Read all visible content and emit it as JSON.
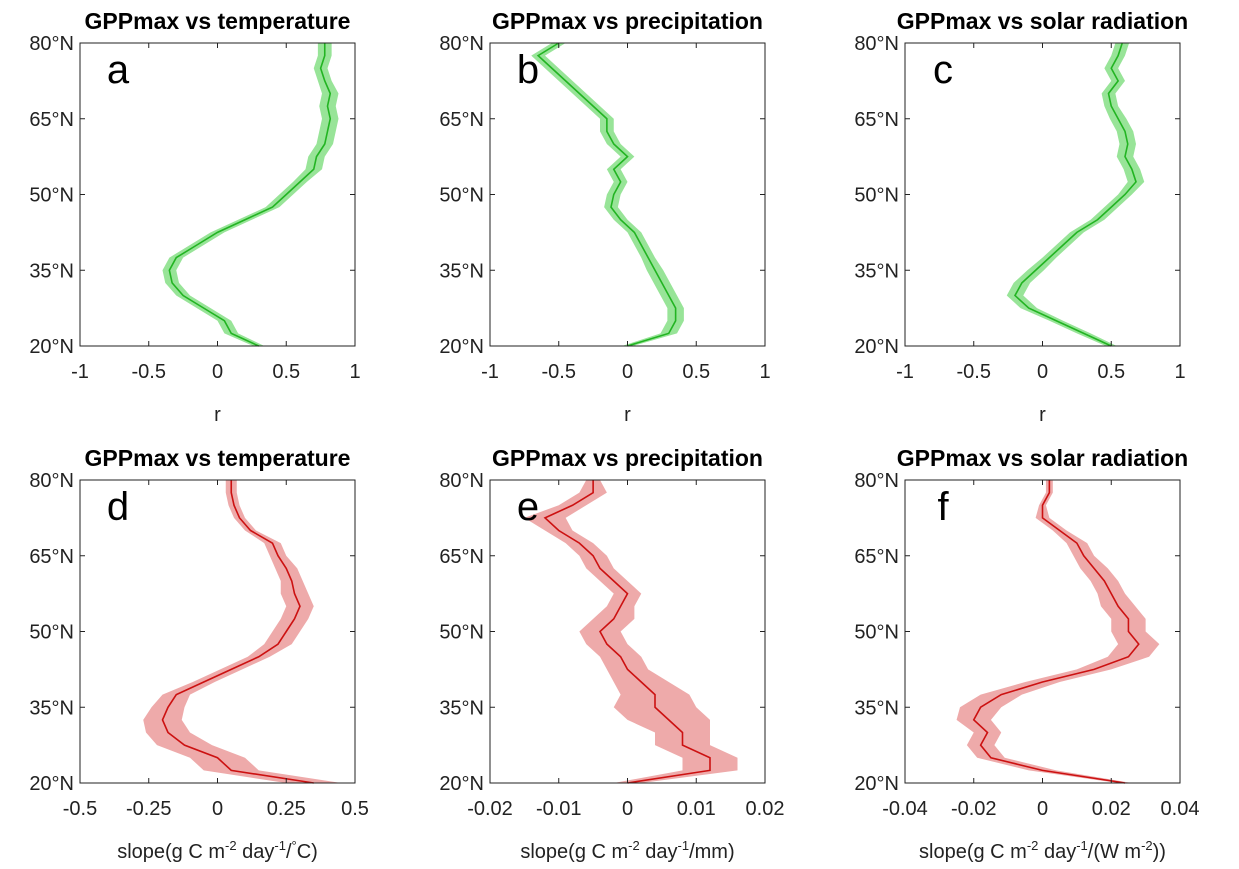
{
  "chart_data": [
    {
      "type": "line",
      "title": "GPPmax vs temperature",
      "annotation": "a",
      "xlabel": [
        "r"
      ],
      "y": [
        20,
        22.5,
        25,
        27.5,
        30,
        32.5,
        35,
        37.5,
        40,
        42.5,
        45,
        47.5,
        50,
        52.5,
        55,
        57.5,
        60,
        62.5,
        65,
        67.5,
        70,
        72.5,
        75,
        77.5,
        80
      ],
      "series": [
        {
          "color": "#22b422",
          "band_color": "#98e498",
          "values": [
            0.3,
            0.1,
            0.05,
            -0.1,
            -0.25,
            -0.33,
            -0.35,
            -0.3,
            -0.15,
            0.0,
            0.2,
            0.4,
            0.5,
            0.6,
            0.7,
            0.72,
            0.78,
            0.8,
            0.82,
            0.8,
            0.82,
            0.78,
            0.75,
            0.78,
            0.78
          ],
          "errors": [
            0.04,
            0.05,
            0.05,
            0.05,
            0.05,
            0.05,
            0.05,
            0.05,
            0.05,
            0.05,
            0.05,
            0.05,
            0.05,
            0.05,
            0.06,
            0.06,
            0.06,
            0.06,
            0.06,
            0.06,
            0.06,
            0.05,
            0.05,
            0.05,
            0.05
          ]
        }
      ],
      "xlim": [
        -1,
        1
      ],
      "xticks": [
        -1,
        -0.5,
        0,
        0.5,
        1
      ],
      "ylim": [
        20,
        80
      ],
      "yticks": [
        {
          "value": 20,
          "label": "20°N"
        },
        {
          "value": 35,
          "label": "35°N"
        },
        {
          "value": 50,
          "label": "50°N"
        },
        {
          "value": 65,
          "label": "65°N"
        },
        {
          "value": 80,
          "label": "80°N"
        }
      ]
    },
    {
      "type": "line",
      "title": "GPPmax vs precipitation",
      "annotation": "b",
      "xlabel": [
        "r"
      ],
      "y": [
        20,
        22.5,
        25,
        27.5,
        30,
        32.5,
        35,
        37.5,
        40,
        42.5,
        45,
        47.5,
        50,
        52.5,
        55,
        57.5,
        60,
        62.5,
        65,
        67.5,
        70,
        72.5,
        75,
        77.5,
        80
      ],
      "series": [
        {
          "color": "#22b422",
          "band_color": "#98e498",
          "values": [
            0.0,
            0.3,
            0.35,
            0.35,
            0.3,
            0.25,
            0.2,
            0.15,
            0.1,
            0.05,
            -0.05,
            -0.12,
            -0.1,
            -0.05,
            -0.1,
            0.0,
            -0.1,
            -0.15,
            -0.15,
            -0.25,
            -0.35,
            -0.45,
            -0.55,
            -0.65,
            -0.5
          ],
          "errors": [
            0.04,
            0.06,
            0.06,
            0.06,
            0.06,
            0.06,
            0.06,
            0.05,
            0.05,
            0.05,
            0.05,
            0.05,
            0.05,
            0.05,
            0.05,
            0.05,
            0.05,
            0.05,
            0.05,
            0.05,
            0.05,
            0.05,
            0.05,
            0.05,
            0.05
          ]
        }
      ],
      "xlim": [
        -1,
        1
      ],
      "xticks": [
        -1,
        -0.5,
        0,
        0.5,
        1
      ],
      "ylim": [
        20,
        80
      ],
      "yticks": [
        {
          "value": 20,
          "label": "20°N"
        },
        {
          "value": 35,
          "label": "35°N"
        },
        {
          "value": 50,
          "label": "50°N"
        },
        {
          "value": 65,
          "label": "65°N"
        },
        {
          "value": 80,
          "label": "80°N"
        }
      ]
    },
    {
      "type": "line",
      "title": "GPPmax vs solar radiation",
      "annotation": "c",
      "xlabel": [
        "r"
      ],
      "y": [
        20,
        22.5,
        25,
        27.5,
        30,
        32.5,
        35,
        37.5,
        40,
        42.5,
        45,
        47.5,
        50,
        52.5,
        55,
        57.5,
        60,
        62.5,
        65,
        67.5,
        70,
        72.5,
        75,
        77.5,
        80
      ],
      "series": [
        {
          "color": "#22b422",
          "band_color": "#98e498",
          "values": [
            0.5,
            0.3,
            0.1,
            -0.1,
            -0.2,
            -0.15,
            -0.05,
            0.05,
            0.15,
            0.25,
            0.4,
            0.5,
            0.6,
            0.68,
            0.65,
            0.6,
            0.62,
            0.6,
            0.55,
            0.5,
            0.48,
            0.55,
            0.5,
            0.55,
            0.58
          ],
          "errors": [
            0.04,
            0.05,
            0.05,
            0.06,
            0.06,
            0.06,
            0.06,
            0.05,
            0.05,
            0.05,
            0.05,
            0.05,
            0.05,
            0.06,
            0.06,
            0.06,
            0.06,
            0.06,
            0.06,
            0.05,
            0.05,
            0.05,
            0.05,
            0.05,
            0.05
          ]
        }
      ],
      "xlim": [
        -1,
        1
      ],
      "xticks": [
        -1,
        -0.5,
        0,
        0.5,
        1
      ],
      "ylim": [
        20,
        80
      ],
      "yticks": [
        {
          "value": 20,
          "label": "20°N"
        },
        {
          "value": 35,
          "label": "35°N"
        },
        {
          "value": 50,
          "label": "50°N"
        },
        {
          "value": 65,
          "label": "65°N"
        },
        {
          "value": 80,
          "label": "80°N"
        }
      ]
    },
    {
      "type": "line",
      "title": "GPPmax vs temperature",
      "annotation": "d",
      "xlabel": [
        "slope(g C m",
        "-2",
        " day",
        "-1",
        "/",
        "°",
        "C)"
      ],
      "y": [
        20,
        22.5,
        25,
        27.5,
        30,
        32.5,
        35,
        37.5,
        40,
        42.5,
        45,
        47.5,
        50,
        52.5,
        55,
        57.5,
        60,
        62.5,
        65,
        67.5,
        70,
        72.5,
        75,
        77.5,
        80
      ],
      "series": [
        {
          "color": "#cc1111",
          "band_color": "#eeaaaa",
          "values": [
            0.35,
            0.05,
            0.0,
            -0.12,
            -0.18,
            -0.2,
            -0.18,
            -0.15,
            -0.05,
            0.05,
            0.15,
            0.22,
            0.25,
            0.28,
            0.3,
            0.28,
            0.27,
            0.25,
            0.22,
            0.2,
            0.12,
            0.08,
            0.06,
            0.05,
            0.05
          ],
          "errors": [
            0.1,
            0.1,
            0.1,
            0.1,
            0.08,
            0.07,
            0.06,
            0.05,
            0.04,
            0.04,
            0.04,
            0.05,
            0.05,
            0.05,
            0.05,
            0.05,
            0.04,
            0.04,
            0.03,
            0.03,
            0.02,
            0.02,
            0.02,
            0.02,
            0.02
          ]
        }
      ],
      "xlim": [
        -0.5,
        0.5
      ],
      "xticks": [
        -0.5,
        -0.25,
        0,
        0.25,
        0.5
      ],
      "ylim": [
        20,
        80
      ],
      "yticks": [
        {
          "value": 20,
          "label": "20°N"
        },
        {
          "value": 35,
          "label": "35°N"
        },
        {
          "value": 50,
          "label": "50°N"
        },
        {
          "value": 65,
          "label": "65°N"
        },
        {
          "value": 80,
          "label": "80°N"
        }
      ]
    },
    {
      "type": "line",
      "title": "GPPmax vs precipitation",
      "annotation": "e",
      "xlabel": [
        "slope(g C m",
        "-2",
        " day",
        "-1",
        "/mm)"
      ],
      "y": [
        20,
        22.5,
        25,
        27.5,
        30,
        32.5,
        35,
        37.5,
        40,
        42.5,
        45,
        47.5,
        50,
        52.5,
        55,
        57.5,
        60,
        62.5,
        65,
        67.5,
        70,
        72.5,
        75,
        77.5,
        80
      ],
      "series": [
        {
          "color": "#cc1111",
          "band_color": "#eeaaaa",
          "values": [
            0.0,
            0.012,
            0.012,
            0.008,
            0.008,
            0.006,
            0.004,
            0.004,
            0.002,
            0.0,
            -0.001,
            -0.003,
            -0.004,
            -0.002,
            -0.001,
            0.0,
            -0.002,
            -0.004,
            -0.005,
            -0.007,
            -0.01,
            -0.012,
            -0.008,
            -0.005,
            -0.005
          ],
          "errors": [
            0.002,
            0.004,
            0.004,
            0.004,
            0.004,
            0.006,
            0.006,
            0.005,
            0.004,
            0.003,
            0.003,
            0.003,
            0.003,
            0.003,
            0.002,
            0.002,
            0.002,
            0.002,
            0.002,
            0.002,
            0.002,
            0.003,
            0.002,
            0.002,
            0.001
          ]
        }
      ],
      "xlim": [
        -0.02,
        0.02
      ],
      "xticks": [
        -0.02,
        -0.01,
        0,
        0.01,
        0.02
      ],
      "ylim": [
        20,
        80
      ],
      "yticks": [
        {
          "value": 20,
          "label": "20°N"
        },
        {
          "value": 35,
          "label": "35°N"
        },
        {
          "value": 50,
          "label": "50°N"
        },
        {
          "value": 65,
          "label": "65°N"
        },
        {
          "value": 80,
          "label": "80°N"
        }
      ]
    },
    {
      "type": "line",
      "title": "GPPmax vs solar radiation",
      "annotation": "f",
      "xlabel": [
        "slope(g C m",
        "-2",
        " day",
        "-1",
        "/(W m",
        "-2",
        "))"
      ],
      "y": [
        20,
        22.5,
        25,
        27.5,
        30,
        32.5,
        35,
        37.5,
        40,
        42.5,
        45,
        47.5,
        50,
        52.5,
        55,
        57.5,
        60,
        62.5,
        65,
        67.5,
        70,
        72.5,
        75,
        77.5,
        80
      ],
      "series": [
        {
          "color": "#cc1111",
          "band_color": "#eeaaaa",
          "values": [
            0.024,
            0.0,
            -0.015,
            -0.018,
            -0.016,
            -0.02,
            -0.018,
            -0.012,
            0.0,
            0.015,
            0.025,
            0.028,
            0.025,
            0.025,
            0.022,
            0.02,
            0.018,
            0.015,
            0.012,
            0.01,
            0.005,
            0.0,
            0.0,
            0.002,
            0.002
          ],
          "errors": [
            0.002,
            0.004,
            0.004,
            0.004,
            0.004,
            0.005,
            0.006,
            0.006,
            0.005,
            0.005,
            0.006,
            0.006,
            0.005,
            0.005,
            0.005,
            0.004,
            0.004,
            0.004,
            0.003,
            0.003,
            0.002,
            0.002,
            0.001,
            0.001,
            0.001
          ]
        }
      ],
      "xlim": [
        -0.04,
        0.04
      ],
      "xticks": [
        -0.04,
        -0.02,
        0,
        0.02,
        0.04
      ],
      "ylim": [
        20,
        80
      ],
      "yticks": [
        {
          "value": 20,
          "label": "20°N"
        },
        {
          "value": 35,
          "label": "35°N"
        },
        {
          "value": 50,
          "label": "50°N"
        },
        {
          "value": 65,
          "label": "65°N"
        },
        {
          "value": 80,
          "label": "80°N"
        }
      ]
    }
  ]
}
